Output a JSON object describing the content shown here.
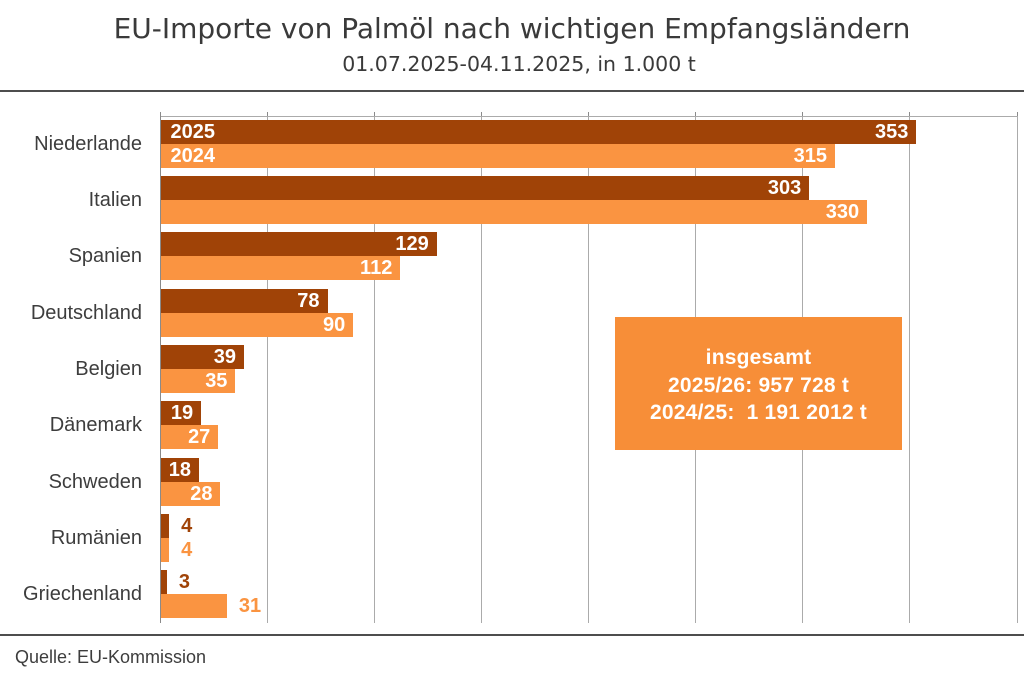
{
  "chart_data": {
    "type": "bar",
    "orientation": "horizontal",
    "title": "EU-Importe von Palmöl nach wichtigen Empfangsländern",
    "subtitle": "01.07.2025-04.11.2025, in 1.000 t",
    "source": "Quelle: EU-Kommission",
    "unit": "1.000 t",
    "categories": [
      "Niederlande",
      "Italien",
      "Spanien",
      "Deutschland",
      "Belgien",
      "Dänemark",
      "Schweden",
      "Rumänien",
      "Griechenland"
    ],
    "series": [
      {
        "name": "2025",
        "color": "#a04307",
        "values": [
          353,
          303,
          129,
          78,
          39,
          19,
          18,
          4,
          3
        ],
        "label_inside": [
          true,
          true,
          true,
          true,
          true,
          true,
          true,
          false,
          false
        ]
      },
      {
        "name": "2024",
        "color": "#fa9441",
        "values": [
          315,
          330,
          112,
          90,
          35,
          27,
          28,
          4,
          31
        ],
        "label_inside": [
          true,
          true,
          true,
          true,
          true,
          true,
          true,
          false,
          false
        ]
      }
    ],
    "xlim": [
      0,
      400
    ],
    "grid_step": 50,
    "grid": true,
    "legend_position": "inside-first-bars",
    "annotation": {
      "lines": [
        "insgesamt",
        "2025/26: 957 728 t",
        "2024/25:  1 191 2012 t"
      ],
      "bg_color": "#f78e38",
      "text_color": "#ffffff"
    }
  }
}
